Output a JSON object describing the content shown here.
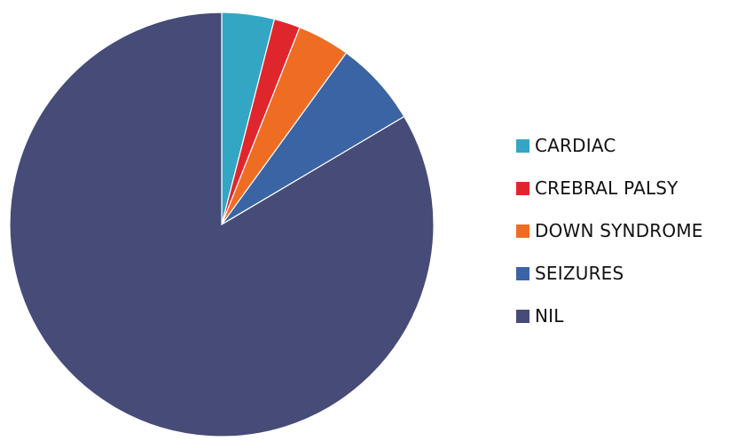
{
  "chart_data": {
    "type": "pie",
    "title": "",
    "legend_position": "right",
    "slices": [
      {
        "label": "CARDIAC",
        "value": 4,
        "color": "#33a6c4"
      },
      {
        "label": "CREBRAL PALSY",
        "value": 2,
        "color": "#e0262d"
      },
      {
        "label": "DOWN SYNDROME",
        "value": 4,
        "color": "#ef6c23"
      },
      {
        "label": "SEIZURES",
        "value": 6.5,
        "color": "#3a64a4"
      },
      {
        "label": "NIL",
        "value": 83.5,
        "color": "#464b78"
      }
    ]
  }
}
